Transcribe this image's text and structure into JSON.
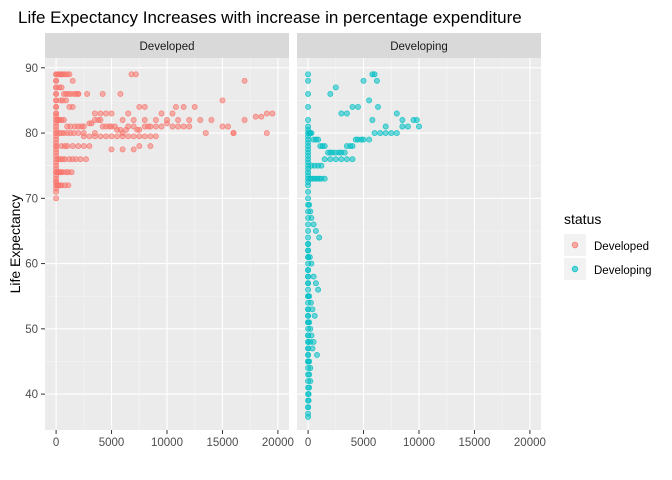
{
  "chart_data": {
    "type": "scatter",
    "title": "Life Expectancy Increases with increase in percentage expenditure",
    "xlabel": "",
    "ylabel": "Life Expectancy",
    "xlim": [
      -1000,
      21000
    ],
    "ylim": [
      34.5,
      91.5
    ],
    "x_ticks": [
      0,
      5000,
      10000,
      15000,
      20000
    ],
    "x_tick_labels": [
      "0",
      "5000",
      "10000",
      "15000",
      "20000"
    ],
    "y_ticks": [
      40,
      50,
      60,
      70,
      80,
      90
    ],
    "y_tick_labels": [
      "40",
      "50",
      "60",
      "70",
      "80",
      "90"
    ],
    "grid": true,
    "facets": [
      "Developed",
      "Developing"
    ],
    "legend": {
      "title": "status",
      "placement": "right",
      "entries": [
        {
          "label": "Developed",
          "color": "#F8766D"
        },
        {
          "label": "Developing",
          "color": "#00BFC4"
        }
      ]
    },
    "series": [
      {
        "name": "Developed",
        "facet": "Developed",
        "color": "#F8766D",
        "x": [
          0,
          0,
          0,
          0,
          0,
          0,
          0,
          0,
          0,
          0,
          0,
          0,
          0,
          0,
          0,
          0,
          0,
          0,
          0,
          0,
          0,
          0,
          0,
          0,
          0,
          0,
          0,
          0,
          0,
          0,
          0,
          0,
          0,
          0,
          0,
          0,
          200,
          300,
          400,
          500,
          600,
          800,
          1000,
          1200,
          1500,
          2000,
          300,
          500,
          700,
          900,
          1100,
          1300,
          1600,
          1800,
          2000,
          400,
          600,
          900,
          1200,
          1500,
          100,
          200,
          300,
          500,
          700,
          1000,
          1300,
          1700,
          2000,
          2300,
          2500,
          3000,
          3200,
          3500,
          3800,
          4000,
          4200,
          4500,
          4800,
          5000,
          5300,
          5500,
          5800,
          6000,
          6300,
          6500,
          7000,
          7300,
          7500,
          8000,
          8300,
          8500,
          9000,
          9500,
          10000,
          10500,
          11000,
          11500,
          12000,
          2500,
          3000,
          3500,
          4000,
          4500,
          5000,
          5500,
          6000,
          6500,
          7000,
          7500,
          8000,
          8500,
          9000,
          6000,
          7000,
          8000,
          9000,
          10000,
          11000,
          12000,
          13000,
          14000,
          15000,
          15500,
          16000,
          17000,
          18000,
          18500,
          19000,
          19500,
          500,
          800,
          1000,
          1500,
          2000,
          2500,
          3000,
          5000,
          6000,
          7000,
          7500,
          8500,
          3500,
          4000,
          4500,
          5000,
          6500,
          7500,
          8000,
          12500,
          15000,
          17000,
          300,
          500,
          700,
          1000,
          1300,
          1600,
          2000,
          2500,
          3500,
          2800,
          4200,
          5800,
          6800,
          7200,
          9500,
          10500,
          10800,
          11500,
          13500,
          16000,
          19000,
          200,
          400,
          600,
          800,
          1200,
          1500,
          1800,
          2200,
          2700,
          150,
          250,
          350,
          450,
          600,
          900,
          1100,
          1400,
          100,
          200,
          350,
          500,
          800,
          1100,
          0,
          0,
          0,
          0,
          0,
          0,
          0
        ],
        "y": [
          89,
          88,
          87,
          86,
          85,
          84,
          83,
          82.5,
          82,
          81.5,
          81,
          80.5,
          80,
          79.5,
          79,
          78.5,
          78,
          77.5,
          77,
          76.5,
          76,
          75.5,
          75,
          74.5,
          74,
          73.5,
          73,
          72.5,
          72,
          71.5,
          71,
          70,
          72.5,
          74,
          78,
          80,
          89,
          89,
          89,
          89,
          89,
          89,
          89,
          89,
          88,
          86,
          87,
          87,
          86,
          86,
          86,
          86,
          86,
          86,
          86,
          85,
          85,
          85,
          84,
          84,
          82,
          82,
          82,
          82,
          82,
          81,
          81,
          81,
          81,
          81,
          81,
          81.5,
          81.5,
          82,
          82,
          82,
          81,
          81,
          81,
          81,
          81,
          80.5,
          80.5,
          80,
          80.5,
          81,
          81,
          80.5,
          80.5,
          81,
          81,
          81,
          81,
          81,
          81.5,
          81,
          81,
          81,
          81,
          79.5,
          79.5,
          79.5,
          79.5,
          79.5,
          79.5,
          79.5,
          79.5,
          79.5,
          79.5,
          79.5,
          79.5,
          79.5,
          79.5,
          82,
          82,
          82,
          82,
          82,
          82,
          82,
          82,
          82,
          81,
          81,
          80,
          82,
          82.5,
          82.5,
          83,
          83,
          78,
          78,
          78,
          78,
          78,
          78,
          78,
          77.5,
          77.5,
          77.5,
          78,
          78,
          83,
          83,
          83,
          83,
          83,
          84,
          84,
          84,
          85,
          88,
          80,
          80,
          80,
          80,
          80,
          80,
          80,
          80,
          80,
          86,
          86,
          86,
          89,
          89,
          83,
          83,
          84,
          84,
          80,
          80,
          80,
          76,
          76,
          76,
          76,
          76,
          76,
          76,
          76,
          76,
          74,
          74,
          74,
          74,
          74,
          74,
          74,
          74,
          72,
          72,
          72,
          72,
          72,
          72,
          89,
          88,
          87,
          86,
          85,
          84,
          83
        ]
      },
      {
        "name": "Developing",
        "facet": "Developing",
        "color": "#00BFC4",
        "x": [
          0,
          0,
          0,
          0,
          0,
          0,
          0,
          0,
          0,
          0,
          0,
          0,
          0,
          0,
          0,
          0,
          0,
          0,
          0,
          0,
          0,
          0,
          0,
          0,
          0,
          0,
          0,
          0,
          0,
          0,
          0,
          0,
          0,
          0,
          0,
          0,
          0,
          0,
          0,
          0,
          0,
          0,
          0,
          0,
          0,
          0,
          0,
          0,
          0,
          0,
          0,
          0,
          0,
          0,
          0,
          0,
          0,
          0,
          0,
          0,
          100,
          200,
          300,
          500,
          700,
          900,
          1100,
          1300,
          1500,
          1800,
          2000,
          2200,
          2500,
          2800,
          3000,
          3300,
          3500,
          3800,
          4000,
          4300,
          4500,
          4800,
          5000,
          5500,
          6000,
          6500,
          7000,
          7500,
          8000,
          8500,
          9000,
          9800,
          300,
          600,
          900,
          1200,
          1500,
          2000,
          2500,
          3000,
          3500,
          4000,
          200,
          400,
          600,
          800,
          1000,
          1200,
          1500,
          100,
          200,
          300,
          500,
          700,
          1000,
          150,
          300,
          500,
          700,
          900,
          100,
          250,
          400,
          600,
          100,
          200,
          300,
          500,
          200,
          400,
          800,
          100,
          200,
          100,
          200,
          100,
          50,
          50,
          0,
          2000,
          2500,
          5000,
          5800,
          6000,
          6200,
          5500,
          6300,
          5800,
          7000,
          8000,
          8500,
          9500,
          10000,
          4000,
          4500,
          3000,
          3500,
          0,
          0,
          0,
          0,
          0,
          0,
          0,
          0,
          0,
          0,
          0,
          0,
          0,
          0,
          0
        ],
        "y": [
          89,
          88,
          86,
          84,
          82,
          80,
          79,
          78,
          77,
          76,
          75,
          74,
          73,
          72,
          71,
          70,
          69,
          68,
          67,
          66,
          65,
          64,
          63,
          62,
          61,
          60,
          59,
          58,
          57,
          56,
          55,
          54,
          53,
          52,
          51,
          50,
          49,
          48,
          47,
          46,
          45,
          44,
          43,
          42,
          41,
          40,
          39,
          38,
          37,
          36.5,
          81,
          80.5,
          79.5,
          78.5,
          77.5,
          76.5,
          75.5,
          74.5,
          73.5,
          72.5,
          80,
          80,
          80,
          79,
          79,
          79,
          78,
          78,
          78,
          77,
          77,
          77,
          77,
          77,
          77,
          77,
          78,
          78,
          78,
          79,
          79,
          79,
          79,
          79,
          80,
          80,
          80,
          80,
          80,
          81,
          81,
          82,
          75,
          75,
          75,
          75,
          76,
          76,
          76,
          76,
          76,
          76,
          73,
          73,
          73,
          73,
          73,
          73,
          73,
          69,
          68,
          67,
          66,
          65,
          64,
          61,
          60,
          58,
          57,
          56,
          55,
          54,
          53,
          52,
          51,
          50,
          49,
          48,
          48,
          47,
          46,
          45,
          44,
          43,
          42,
          41,
          40,
          39,
          38,
          86,
          87,
          88,
          89,
          89,
          88,
          85,
          84,
          82,
          81,
          83,
          82,
          82,
          81,
          84,
          84,
          83,
          83,
          63,
          62,
          61,
          59,
          58,
          57,
          55,
          53,
          52,
          51,
          49,
          48,
          47,
          46,
          45
        ]
      }
    ]
  }
}
